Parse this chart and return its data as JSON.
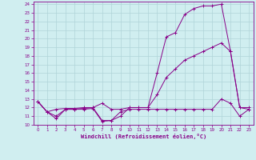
{
  "xlabel": "Windchill (Refroidissement éolien,°C)",
  "xlim": [
    -0.5,
    23.5
  ],
  "ylim": [
    10,
    24.3
  ],
  "xticks": [
    0,
    1,
    2,
    3,
    4,
    5,
    6,
    7,
    8,
    9,
    10,
    11,
    12,
    13,
    14,
    15,
    16,
    17,
    18,
    19,
    20,
    21,
    22,
    23
  ],
  "yticks": [
    10,
    11,
    12,
    13,
    14,
    15,
    16,
    17,
    18,
    19,
    20,
    21,
    22,
    23,
    24
  ],
  "line_color": "#880088",
  "bg_color": "#d0eef0",
  "grid_color": "#b0d4d8",
  "line1_x": [
    0,
    1,
    2,
    3,
    4,
    5,
    6,
    7,
    8,
    9,
    10,
    11,
    12,
    13,
    14,
    15,
    16,
    17,
    18,
    19,
    20,
    21,
    22,
    23
  ],
  "line1_y": [
    12.7,
    11.5,
    10.7,
    11.8,
    11.8,
    11.8,
    11.9,
    10.4,
    10.5,
    11.0,
    12.0,
    12.0,
    12.0,
    16.0,
    20.2,
    20.7,
    22.8,
    23.5,
    23.8,
    23.8,
    24.0,
    18.5,
    12.0,
    11.8
  ],
  "line2_x": [
    0,
    1,
    2,
    3,
    4,
    5,
    6,
    7,
    8,
    9,
    10,
    11,
    12,
    13,
    14,
    15,
    16,
    17,
    18,
    19,
    20,
    21,
    22,
    23
  ],
  "line2_y": [
    12.7,
    11.5,
    11.8,
    11.9,
    11.9,
    12.0,
    12.0,
    12.5,
    11.8,
    11.8,
    12.0,
    12.0,
    12.0,
    13.5,
    15.5,
    16.5,
    17.5,
    18.0,
    18.5,
    19.0,
    19.5,
    18.5,
    12.0,
    12.0
  ],
  "line3_x": [
    0,
    1,
    2,
    3,
    4,
    5,
    6,
    7,
    8,
    9,
    10,
    11,
    12,
    13,
    14,
    15,
    16,
    17,
    18,
    19,
    20,
    21,
    22,
    23
  ],
  "line3_y": [
    12.7,
    11.5,
    11.0,
    11.8,
    11.8,
    11.9,
    12.0,
    10.5,
    10.5,
    11.5,
    11.8,
    11.8,
    11.8,
    11.8,
    11.8,
    11.8,
    11.8,
    11.8,
    11.8,
    11.8,
    13.0,
    12.5,
    11.0,
    11.8
  ]
}
